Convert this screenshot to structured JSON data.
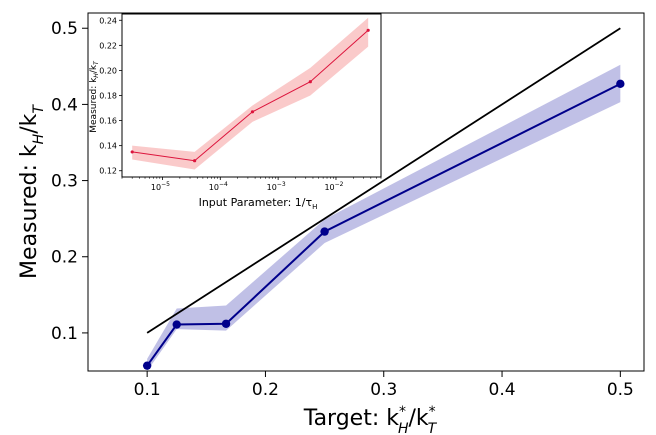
{
  "chart_data": [
    {
      "type": "line",
      "xlabel": "Target: k",
      "ylabel": "Measured: k",
      "xlim": [
        0.05,
        0.52
      ],
      "ylim": [
        0.05,
        0.52
      ],
      "xticks": [
        0.1,
        0.2,
        0.3,
        0.4,
        0.5
      ],
      "yticks": [
        0.1,
        0.2,
        0.3,
        0.4,
        0.5
      ],
      "x": [
        0.1,
        0.125,
        0.1667,
        0.25,
        0.5
      ],
      "series": [
        {
          "values": [
            0.057,
            0.111,
            0.112,
            0.233,
            0.427
          ],
          "lower": [
            0.05,
            0.105,
            0.103,
            0.218,
            0.403
          ],
          "upper": [
            0.066,
            0.132,
            0.136,
            0.249,
            0.452
          ],
          "color": "#00008b",
          "band_color": "#8c8cd2"
        }
      ],
      "reference_line": {
        "x": [
          0.1,
          0.5
        ],
        "y": [
          0.1,
          0.5
        ],
        "color": "#000000"
      },
      "grid": false
    },
    {
      "type": "line",
      "xlabel": "Input Parameter: 1/τ",
      "ylabel": "Measured: k",
      "xscale": "log",
      "xlim": [
        2e-06,
        0.06
      ],
      "ylim": [
        0.115,
        0.245
      ],
      "xticks": [
        1e-05,
        0.0001,
        0.001,
        0.01
      ],
      "xtick_labels": [
        "10",
        "10",
        "10",
        "10"
      ],
      "xtick_exponents": [
        "−5",
        "−4",
        "−3",
        "−2"
      ],
      "yticks": [
        0.12,
        0.14,
        0.16,
        0.18,
        0.2,
        0.22,
        0.24
      ],
      "ytick_labels": [
        "0.12",
        "0.14",
        "0.16",
        "0.18",
        "0.20",
        "0.22",
        "0.24"
      ],
      "x": [
        3e-06,
        3.6e-05,
        0.00036,
        0.0036,
        0.036
      ],
      "series": [
        {
          "values": [
            0.135,
            0.128,
            0.167,
            0.191,
            0.232
          ],
          "lower": [
            0.129,
            0.121,
            0.159,
            0.18,
            0.219
          ],
          "upper": [
            0.14,
            0.135,
            0.172,
            0.202,
            0.242
          ],
          "color": "#dc143c",
          "band_color": "#f7a6a6"
        }
      ],
      "grid": false
    }
  ],
  "labels": {
    "main_x_prefix": "Target: k",
    "main_x_sub1": "H",
    "main_x_sup1": "*",
    "main_x_mid": "/k",
    "main_x_sub2": "T",
    "main_x_sup2": "*",
    "main_y_prefix": "Measured: k",
    "main_y_sub1": "H",
    "main_y_mid": "/k",
    "main_y_sub2": "T",
    "main_xticks": [
      "0.1",
      "0.2",
      "0.3",
      "0.4",
      "0.5"
    ],
    "main_yticks": [
      "0.1",
      "0.2",
      "0.3",
      "0.4",
      "0.5"
    ],
    "inset_x_prefix": "Input Parameter: 1/τ",
    "inset_x_sub": "H",
    "inset_y_prefix": "Measured: k",
    "inset_y_sub1": "H",
    "inset_y_mid": "/k",
    "inset_y_sub2": "T"
  }
}
